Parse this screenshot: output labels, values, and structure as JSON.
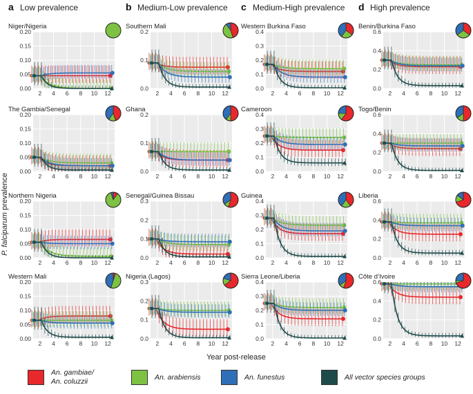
{
  "figure": {
    "ylabel_prefix": "P. falciparum",
    "ylabel_suffix": " prevalence",
    "xlabel": "Year post-release",
    "x_ticks": [
      "2",
      "4",
      "6",
      "8",
      "10",
      "12"
    ]
  },
  "columns": [
    {
      "letter": "a",
      "title": "Low prevalence"
    },
    {
      "letter": "b",
      "title": "Medium-Low prevalence"
    },
    {
      "letter": "c",
      "title": "Medium-High prevalence"
    },
    {
      "letter": "d",
      "title": "High prevalence"
    }
  ],
  "legend": [
    {
      "label": "An. gambiae/ An. coluzzii",
      "color": "#e8282b"
    },
    {
      "label": "An. arabiensis",
      "color": "#7dc242"
    },
    {
      "label": "An. funestus",
      "color": "#2f6fb8"
    },
    {
      "label": "All vector species groups",
      "color": "#1f4a4a"
    }
  ],
  "colors": {
    "gambiae": "#e8282b",
    "arabiensis": "#7dc242",
    "funestus": "#2f6fb8",
    "all": "#1f4a4a",
    "panel_bg": "#ebebeb",
    "grid": "#ffffff"
  },
  "chart_data": [
    {
      "type": "line",
      "column": 0,
      "row": 0,
      "title": "Niger/Nigeria",
      "ylim": [
        0,
        0.2
      ],
      "yticks": [
        "0.00",
        "0.05",
        "0.10",
        "0.15",
        "0.20"
      ],
      "x": [
        1,
        13
      ],
      "base": 0.045,
      "series": [
        {
          "name": "An. gambiae/An. coluzzii",
          "end": 0.045
        },
        {
          "name": "An. arabiensis",
          "end": 0.0
        },
        {
          "name": "An. funestus",
          "end": 0.055
        },
        {
          "name": "All vector species groups",
          "end": 0.0
        }
      ],
      "pie": [
        0.0,
        1.0,
        0.0
      ]
    },
    {
      "type": "line",
      "column": 0,
      "row": 1,
      "title": "The Gambia/Senegal",
      "ylim": [
        0,
        0.2
      ],
      "yticks": [
        "0.00",
        "0.05",
        "0.10",
        "0.15",
        "0.20"
      ],
      "x": [
        1,
        13
      ],
      "base": 0.05,
      "series": [
        {
          "name": "An. gambiae/An. coluzzii",
          "end": 0.02
        },
        {
          "name": "An. arabiensis",
          "end": 0.03
        },
        {
          "name": "An. funestus",
          "end": 0.02
        },
        {
          "name": "All vector species groups",
          "end": 0.005
        }
      ],
      "pie": [
        0.45,
        0.15,
        0.4
      ]
    },
    {
      "type": "line",
      "column": 0,
      "row": 2,
      "title": "Northern Nigeria",
      "ylim": [
        0,
        0.2
      ],
      "yticks": [
        "0.00",
        "0.05",
        "0.10",
        "0.15",
        "0.20"
      ],
      "x": [
        1,
        13
      ],
      "base": 0.055,
      "series": [
        {
          "name": "An. gambiae/An. coluzzii",
          "end": 0.065
        },
        {
          "name": "An. arabiensis",
          "end": 0.005
        },
        {
          "name": "An. funestus",
          "end": 0.05
        },
        {
          "name": "All vector species groups",
          "end": 0.0
        }
      ],
      "pie": [
        0.1,
        0.85,
        0.05
      ]
    },
    {
      "type": "line",
      "column": 0,
      "row": 3,
      "title": "Western Mali",
      "ylim": [
        0,
        0.2
      ],
      "yticks": [
        "0.00",
        "0.05",
        "0.10",
        "0.15",
        "0.20"
      ],
      "x": [
        1,
        13
      ],
      "base": 0.065,
      "series": [
        {
          "name": "An. gambiae/An. coluzzii",
          "end": 0.08
        },
        {
          "name": "An. arabiensis",
          "end": 0.065
        },
        {
          "name": "An. funestus",
          "end": 0.055
        },
        {
          "name": "All vector species groups",
          "end": 0.005
        }
      ],
      "pie": [
        0.05,
        0.5,
        0.45
      ]
    },
    {
      "type": "line",
      "column": 1,
      "row": 0,
      "title": "Southern Mali",
      "ylim": [
        0,
        0.2
      ],
      "yticks": [
        "0.0",
        "0.1",
        "0.2"
      ],
      "x": [
        1,
        13
      ],
      "base": 0.09,
      "series": [
        {
          "name": "An. gambiae/An. coluzzii",
          "end": 0.075
        },
        {
          "name": "An. arabiensis",
          "end": 0.06
        },
        {
          "name": "An. funestus",
          "end": 0.04
        },
        {
          "name": "All vector species groups",
          "end": 0.005
        }
      ],
      "pie": [
        0.45,
        0.45,
        0.1
      ]
    },
    {
      "type": "line",
      "column": 1,
      "row": 1,
      "title": "Ghana",
      "ylim": [
        0,
        0.2
      ],
      "yticks": [
        "0.0",
        "0.1",
        "0.2"
      ],
      "x": [
        1,
        13
      ],
      "base": 0.07,
      "series": [
        {
          "name": "An. gambiae/An. coluzzii",
          "end": 0.04
        },
        {
          "name": "An. arabiensis",
          "end": 0.07
        },
        {
          "name": "An. funestus",
          "end": 0.04
        },
        {
          "name": "All vector species groups",
          "end": 0.005
        }
      ],
      "pie": [
        0.5,
        0.1,
        0.4
      ]
    },
    {
      "type": "line",
      "column": 1,
      "row": 2,
      "title": "Senegal/Guinea Bissau",
      "ylim": [
        0,
        0.3
      ],
      "yticks": [
        "0.0",
        "0.1",
        "0.2",
        "0.3"
      ],
      "x": [
        1,
        13
      ],
      "base": 0.1,
      "series": [
        {
          "name": "An. gambiae/An. coluzzii",
          "end": 0.02
        },
        {
          "name": "An. arabiensis",
          "end": 0.07
        },
        {
          "name": "An. funestus",
          "end": 0.085
        },
        {
          "name": "All vector species groups",
          "end": 0.005
        }
      ],
      "pie": [
        0.55,
        0.1,
        0.35
      ]
    },
    {
      "type": "line",
      "column": 1,
      "row": 3,
      "title": "Nigeria (Lagos)",
      "ylim": [
        0,
        0.3
      ],
      "yticks": [
        "0.0",
        "0.1",
        "0.2",
        "0.3"
      ],
      "x": [
        1,
        13
      ],
      "base": 0.16,
      "series": [
        {
          "name": "An. gambiae/An. coluzzii",
          "end": 0.05
        },
        {
          "name": "An. arabiensis",
          "end": 0.15
        },
        {
          "name": "An. funestus",
          "end": 0.14
        },
        {
          "name": "All vector species groups",
          "end": 0.005
        }
      ],
      "pie": [
        0.65,
        0.15,
        0.2
      ]
    },
    {
      "type": "line",
      "column": 2,
      "row": 0,
      "title": "Western Burkina Faso",
      "ylim": [
        0,
        0.4
      ],
      "yticks": [
        "0.0",
        "0.1",
        "0.2",
        "0.3",
        "0.4"
      ],
      "x": [
        1,
        13
      ],
      "base": 0.17,
      "series": [
        {
          "name": "An. gambiae/An. coluzzii",
          "end": 0.12
        },
        {
          "name": "An. arabiensis",
          "end": 0.14
        },
        {
          "name": "An. funestus",
          "end": 0.08
        },
        {
          "name": "All vector species groups",
          "end": 0.005
        }
      ],
      "pie": [
        0.35,
        0.25,
        0.4
      ]
    },
    {
      "type": "line",
      "column": 2,
      "row": 1,
      "title": "Cameroon",
      "ylim": [
        0,
        0.4
      ],
      "yticks": [
        "0.0",
        "0.1",
        "0.2",
        "0.3",
        "0.4"
      ],
      "x": [
        1,
        13
      ],
      "base": 0.25,
      "series": [
        {
          "name": "An. gambiae/An. coluzzii",
          "end": 0.15
        },
        {
          "name": "An. arabiensis",
          "end": 0.24
        },
        {
          "name": "An. funestus",
          "end": 0.19
        },
        {
          "name": "All vector species groups",
          "end": 0.06
        }
      ],
      "pie": [
        0.6,
        0.15,
        0.25
      ]
    },
    {
      "type": "line",
      "column": 2,
      "row": 2,
      "title": "Guinea",
      "ylim": [
        0,
        0.4
      ],
      "yticks": [
        "0.0",
        "0.1",
        "0.2",
        "0.3",
        "0.4"
      ],
      "x": [
        1,
        13
      ],
      "base": 0.28,
      "series": [
        {
          "name": "An. gambiae/An. coluzzii",
          "end": 0.17
        },
        {
          "name": "An. arabiensis",
          "end": 0.23
        },
        {
          "name": "An. funestus",
          "end": 0.19
        },
        {
          "name": "All vector species groups",
          "end": 0.01
        }
      ],
      "pie": [
        0.4,
        0.2,
        0.4
      ]
    },
    {
      "type": "line",
      "column": 2,
      "row": 3,
      "title": "Sierra Leone/Liberia",
      "ylim": [
        0,
        0.4
      ],
      "yticks": [
        "0.0",
        "0.1",
        "0.2",
        "0.3",
        "0.4"
      ],
      "x": [
        1,
        13
      ],
      "base": 0.25,
      "series": [
        {
          "name": "An. gambiae/An. coluzzii",
          "end": 0.14
        },
        {
          "name": "An. arabiensis",
          "end": 0.22
        },
        {
          "name": "An. funestus",
          "end": 0.2
        },
        {
          "name": "All vector species groups",
          "end": 0.005
        }
      ],
      "pie": [
        0.55,
        0.1,
        0.35
      ]
    },
    {
      "type": "line",
      "column": 3,
      "row": 0,
      "title": "Benin/Burkina Faso",
      "ylim": [
        0,
        0.6
      ],
      "yticks": [
        "0.0",
        "0.2",
        "0.4",
        "0.6"
      ],
      "x": [
        1,
        13
      ],
      "base": 0.3,
      "series": [
        {
          "name": "An. gambiae/An. coluzzii",
          "end": 0.23
        },
        {
          "name": "An. arabiensis",
          "end": 0.25
        },
        {
          "name": "An. funestus",
          "end": 0.24
        },
        {
          "name": "All vector species groups",
          "end": 0.03
        }
      ],
      "pie": [
        0.35,
        0.3,
        0.35
      ]
    },
    {
      "type": "line",
      "column": 3,
      "row": 1,
      "title": "Togo/Benin",
      "ylim": [
        0,
        0.6
      ],
      "yticks": [
        "0.0",
        "0.2",
        "0.4",
        "0.6"
      ],
      "x": [
        1,
        13
      ],
      "base": 0.3,
      "series": [
        {
          "name": "An. gambiae/An. coluzzii",
          "end": 0.24
        },
        {
          "name": "An. arabiensis",
          "end": 0.3
        },
        {
          "name": "An. funestus",
          "end": 0.27
        },
        {
          "name": "All vector species groups",
          "end": 0.01
        }
      ],
      "pie": [
        0.5,
        0.15,
        0.35
      ]
    },
    {
      "type": "line",
      "column": 3,
      "row": 2,
      "title": "Liberia",
      "ylim": [
        0,
        0.6
      ],
      "yticks": [
        "0.0",
        "0.2",
        "0.4",
        "0.6"
      ],
      "x": [
        1,
        13
      ],
      "base": 0.38,
      "series": [
        {
          "name": "An. gambiae/An. coluzzii",
          "end": 0.25
        },
        {
          "name": "An. arabiensis",
          "end": 0.37
        },
        {
          "name": "An. funestus",
          "end": 0.34
        },
        {
          "name": "All vector species groups",
          "end": 0.05
        }
      ],
      "pie": [
        0.7,
        0.15,
        0.15
      ]
    },
    {
      "type": "line",
      "column": 3,
      "row": 3,
      "title": "Côte d’Ivoire",
      "ylim": [
        0,
        0.6
      ],
      "yticks": [
        "0.0",
        "0.2",
        "0.4",
        "0.6"
      ],
      "x": [
        1,
        13
      ],
      "base": 0.58,
      "series": [
        {
          "name": "An. gambiae/An. coluzzii",
          "end": 0.44
        },
        {
          "name": "An. arabiensis",
          "end": 0.58
        },
        {
          "name": "An. funestus",
          "end": 0.55
        },
        {
          "name": "All vector species groups",
          "end": 0.03
        }
      ],
      "pie": [
        0.7,
        0.05,
        0.25
      ]
    }
  ]
}
